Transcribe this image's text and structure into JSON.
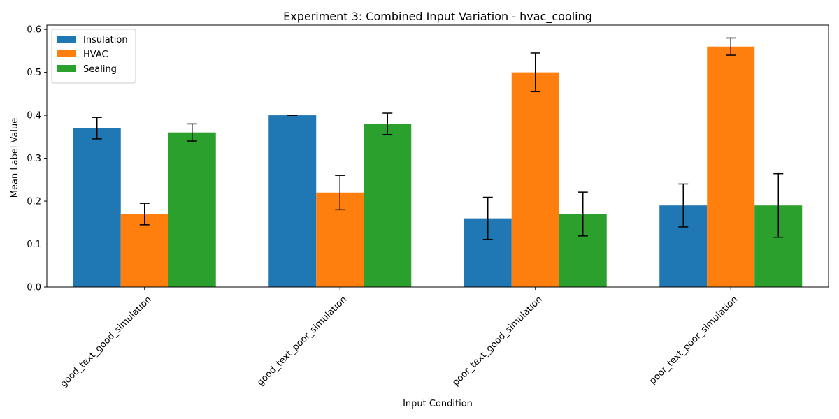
{
  "chart_data": {
    "type": "bar",
    "title": "Experiment 3: Combined Input Variation - hvac_cooling",
    "xlabel": "Input Condition",
    "ylabel": "Mean Label Value",
    "categories": [
      "good_text_good_simulation",
      "good_text_poor_simulation",
      "poor_text_good_simulation",
      "poor_text_poor_simulation"
    ],
    "series": [
      {
        "name": "Insulation",
        "color": "#1f77b4",
        "values": [
          0.37,
          0.4,
          0.16,
          0.19
        ],
        "errors": [
          0.025,
          0.0,
          0.049,
          0.05
        ]
      },
      {
        "name": "HVAC",
        "color": "#ff7f0e",
        "values": [
          0.17,
          0.22,
          0.5,
          0.56
        ],
        "errors": [
          0.025,
          0.04,
          0.045,
          0.02
        ]
      },
      {
        "name": "Sealing",
        "color": "#2ca02c",
        "values": [
          0.36,
          0.38,
          0.17,
          0.19
        ],
        "errors": [
          0.02,
          0.025,
          0.051,
          0.074
        ]
      }
    ],
    "ylim": [
      0,
      0.61
    ],
    "yticks": [
      "0.0",
      "0.1",
      "0.2",
      "0.3",
      "0.4",
      "0.5",
      "0.6"
    ],
    "legend": "top-left",
    "grid": false
  }
}
